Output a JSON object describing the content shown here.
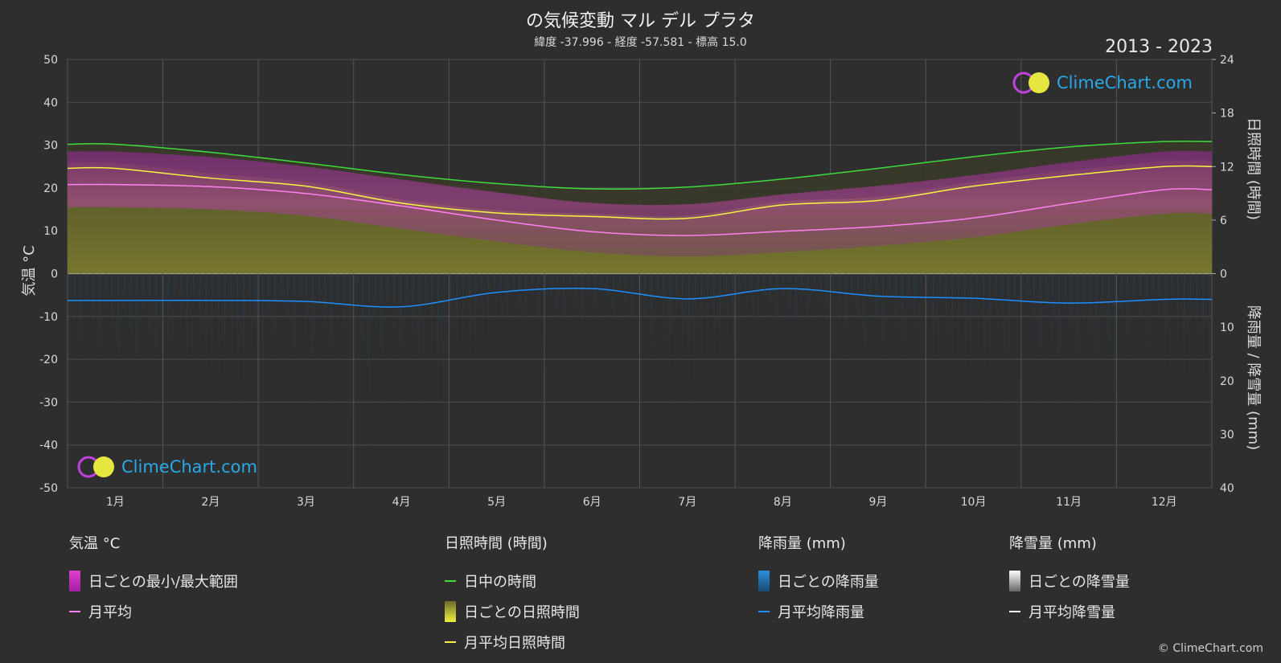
{
  "header": {
    "title": "の気候変動 マル デル プラタ",
    "subtitle": "緯度 -37.996 - 経度 -57.581 - 標高 15.0",
    "years": "2013 - 2023"
  },
  "logo_text": "ClimeChart.com",
  "copyright": "© ClimeChart.com",
  "colors": {
    "background": "#2e2e2e",
    "temp_range": "#e23fcf",
    "temp_avg": "#ff80f0",
    "daylight": "#3ddc3d",
    "sunshine_fill": "#c9c93a",
    "sunshine_avg": "#f5f542",
    "rain": "#1f6fae",
    "rain_avg": "#1e90ff",
    "snow_avg": "#ffffff"
  },
  "chart_data": {
    "type": "line",
    "months": [
      "1月",
      "2月",
      "3月",
      "4月",
      "5月",
      "6月",
      "7月",
      "8月",
      "9月",
      "10月",
      "11月",
      "12月"
    ],
    "left_axis": {
      "label": "気温 °C",
      "ticks": [
        "50",
        "40",
        "30",
        "20",
        "10",
        "0",
        "-10",
        "-20",
        "-30",
        "-40",
        "-50"
      ],
      "range": [
        -50,
        50
      ]
    },
    "right_axis_top": {
      "label": "日照時間 (時間)",
      "ticks": [
        "24",
        "18",
        "12",
        "6",
        "0"
      ],
      "range": [
        0,
        24
      ]
    },
    "right_axis_bottom": {
      "label": "降雨量 / 降雪量 (mm)",
      "ticks": [
        "0",
        "10",
        "20",
        "30",
        "40"
      ],
      "range": [
        0,
        40
      ]
    },
    "series": [
      {
        "name": "日中の時間",
        "unit": "hours",
        "values": [
          14.5,
          13.6,
          12.4,
          11.1,
          10.1,
          9.5,
          9.7,
          10.6,
          11.8,
          13.1,
          14.2,
          14.8
        ]
      },
      {
        "name": "月平均日照時間",
        "unit": "hours",
        "values": [
          11.8,
          10.7,
          9.8,
          7.9,
          6.8,
          6.4,
          6.2,
          7.7,
          8.2,
          9.8,
          11.0,
          12.0
        ]
      },
      {
        "name": "月平均",
        "unit": "°C",
        "values": [
          20.8,
          20.3,
          18.7,
          15.8,
          12.5,
          9.8,
          8.9,
          9.9,
          11.0,
          13.0,
          16.4,
          19.6
        ]
      },
      {
        "name": "temp_max_daily_band",
        "unit": "°C",
        "values": [
          28.5,
          27.2,
          25.0,
          22.0,
          19.0,
          16.5,
          16.2,
          18.5,
          20.5,
          23.0,
          26.0,
          28.5
        ]
      },
      {
        "name": "temp_min_daily_band",
        "unit": "°C",
        "values": [
          15.5,
          15.0,
          13.5,
          10.5,
          7.5,
          5.0,
          4.0,
          5.0,
          6.5,
          8.5,
          11.5,
          14.0
        ]
      },
      {
        "name": "月平均降雨量",
        "unit": "mm",
        "values": [
          5.0,
          5.0,
          5.2,
          6.2,
          3.5,
          2.8,
          4.7,
          2.8,
          4.2,
          4.6,
          5.5,
          4.8
        ]
      },
      {
        "name": "月平均降雪量",
        "unit": "mm",
        "values": [
          0,
          0,
          0,
          0,
          0,
          0,
          0,
          0,
          0,
          0,
          0,
          0
        ]
      }
    ]
  },
  "legend": {
    "temperature": {
      "header": "気温 °C",
      "range": "日ごとの最小/最大範囲",
      "avg": "月平均"
    },
    "sunshine": {
      "header": "日照時間 (時間)",
      "daylight": "日中の時間",
      "daily": "日ごとの日照時間",
      "avg": "月平均日照時間"
    },
    "rain": {
      "header": "降雨量 (mm)",
      "daily": "日ごとの降雨量",
      "avg": "月平均降雨量"
    },
    "snow": {
      "header": "降雪量 (mm)",
      "daily": "日ごとの降雪量",
      "avg": "月平均降雪量"
    }
  }
}
